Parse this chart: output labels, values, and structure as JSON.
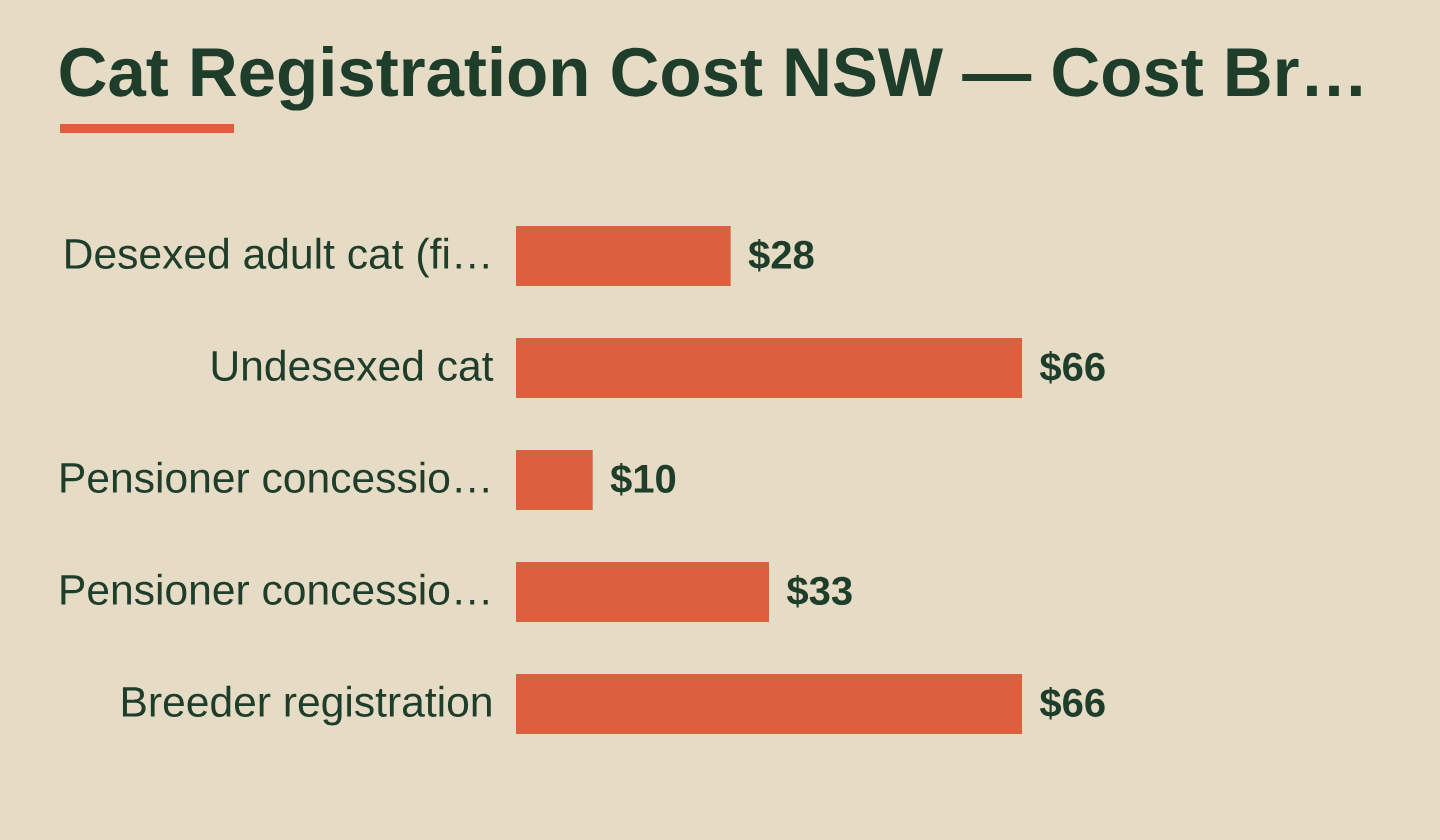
{
  "chart_data": {
    "type": "bar",
    "orientation": "horizontal",
    "title": "Cat Registration Cost NSW — Cost Br…",
    "categories": [
      "Desexed adult cat (fi…",
      "Undesexed cat",
      "Pensioner concessio…",
      "Pensioner concessio…",
      "Breeder registration"
    ],
    "values": [
      28,
      66,
      10,
      33,
      66
    ],
    "color": "#db603d",
    "value_labels": [
      "$28",
      "$66",
      "$10",
      "$33",
      "$66"
    ]
  }
}
